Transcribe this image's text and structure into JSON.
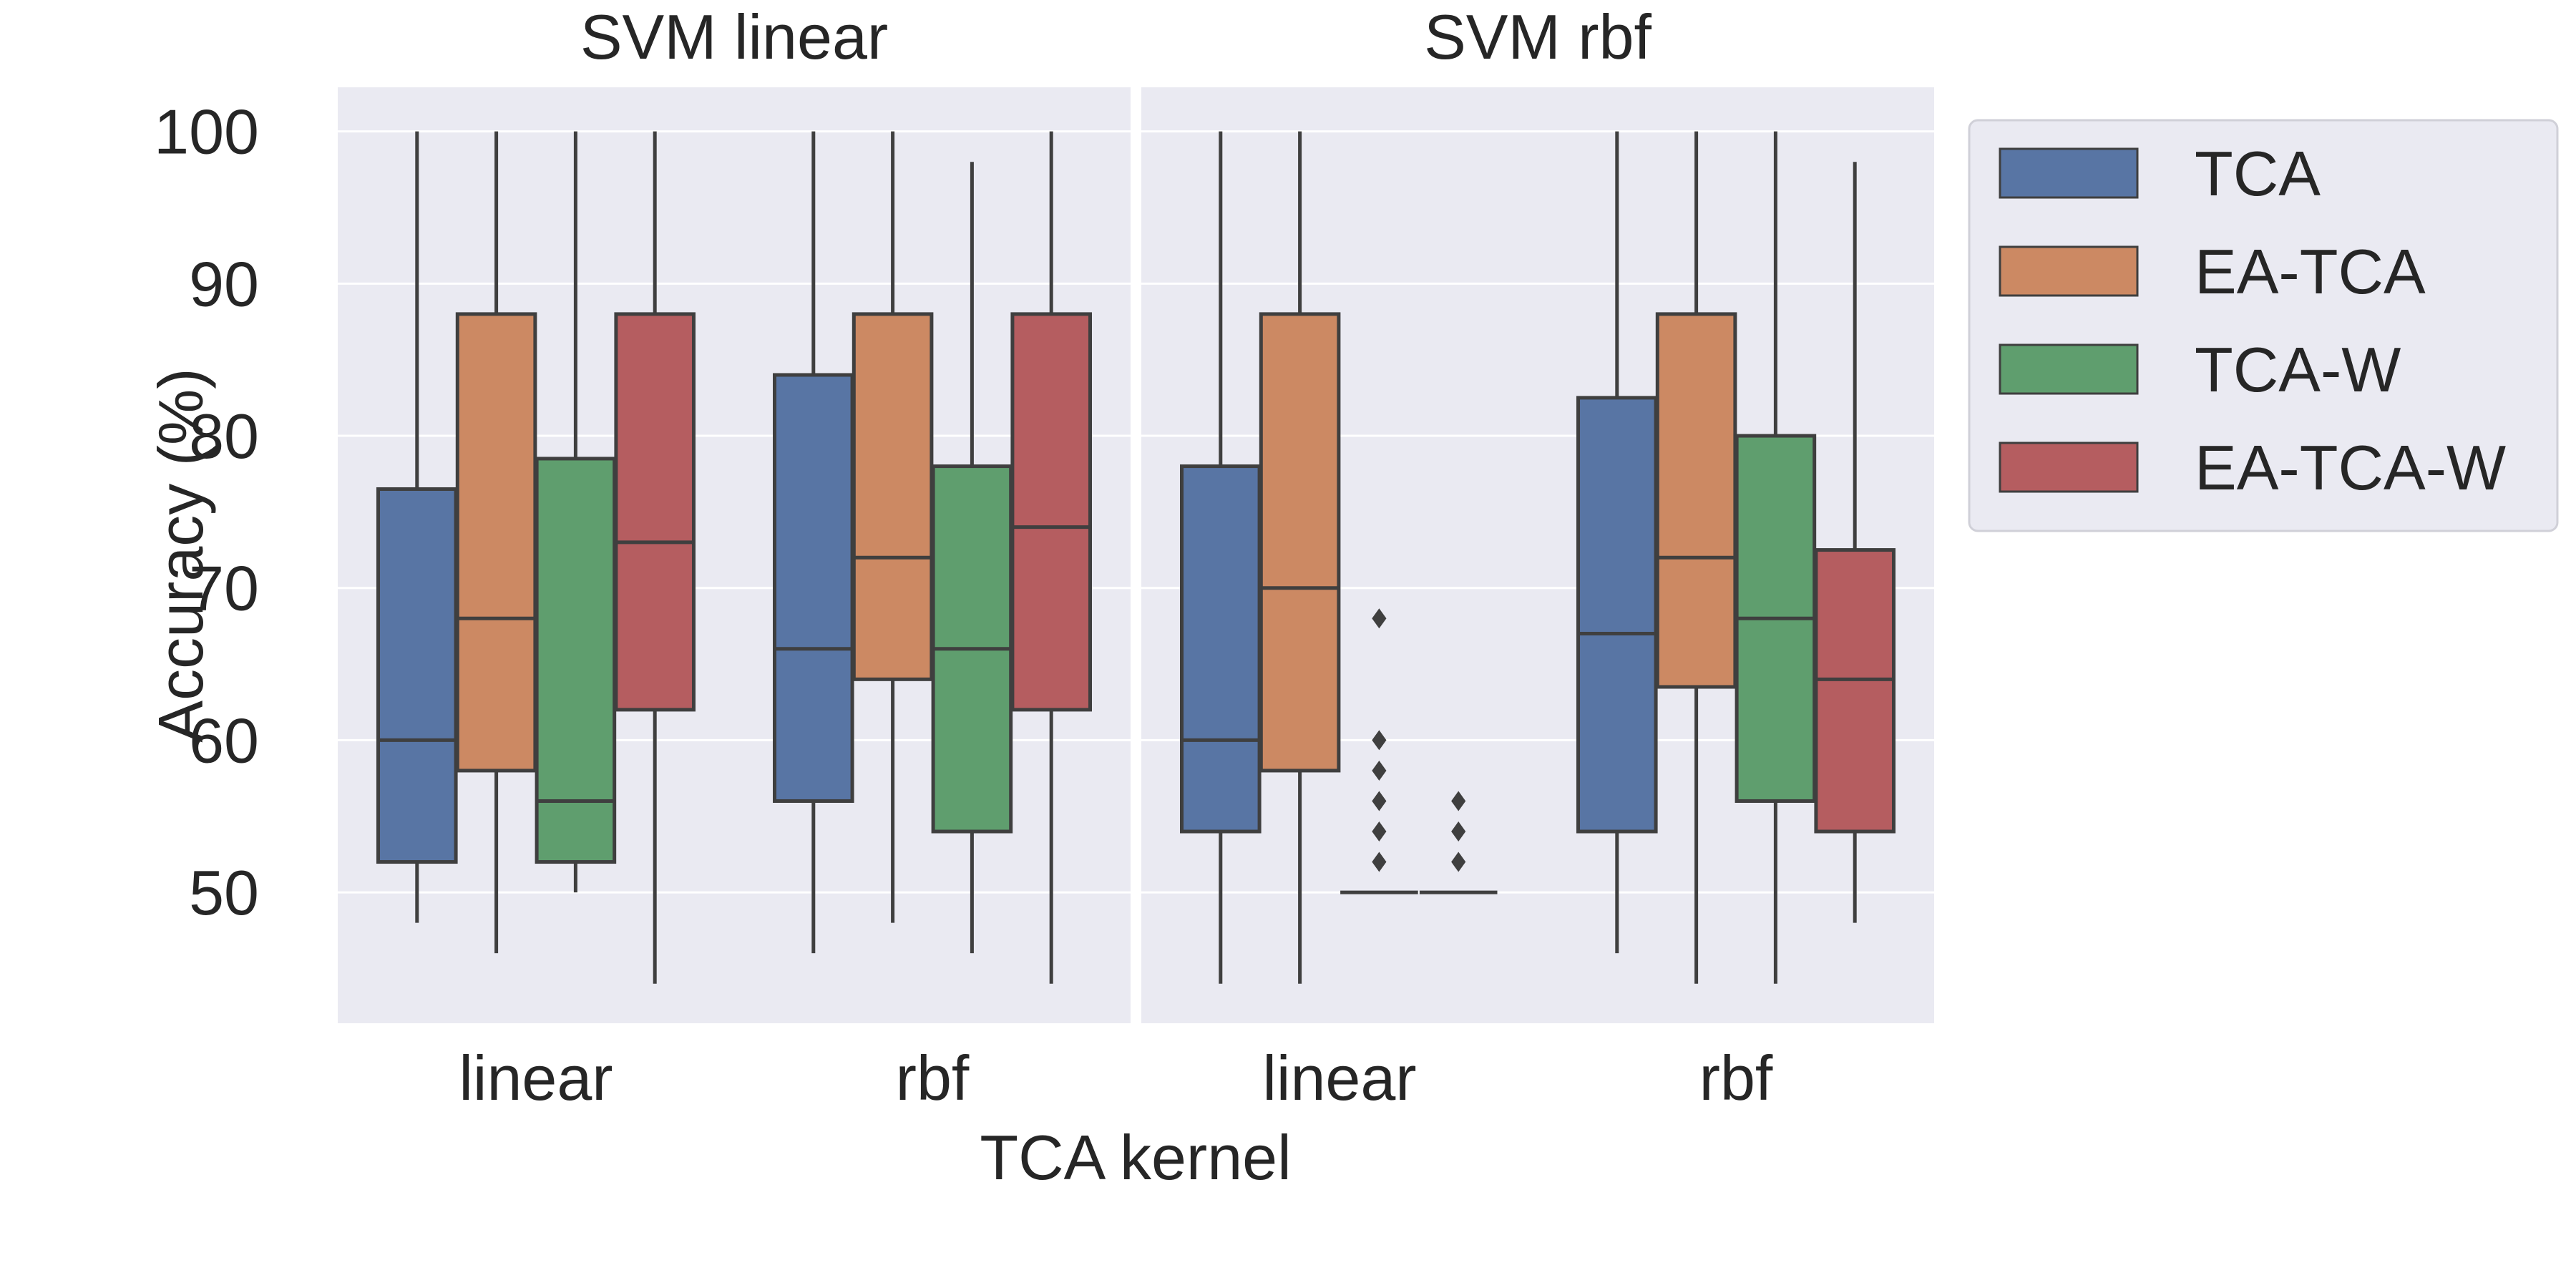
{
  "chart_data": {
    "type": "boxplot",
    "xlabel": "TCA kernel",
    "ylabel": "Accuracy (%)",
    "ylim": [
      41.4,
      102.9
    ],
    "yticks": [
      50,
      60,
      70,
      80,
      90,
      100
    ],
    "categories": [
      "linear",
      "rbf"
    ],
    "grid": true,
    "legend_position": "outside-right",
    "series": [
      {
        "name": "TCA",
        "color": "#5875a4"
      },
      {
        "name": "EA-TCA",
        "color": "#cc8963"
      },
      {
        "name": "TCA-W",
        "color": "#5f9e6e"
      },
      {
        "name": "EA-TCA-W",
        "color": "#b55d60"
      }
    ],
    "panels": [
      {
        "title": "SVM linear",
        "groups": [
          {
            "category": "linear",
            "boxes": [
              {
                "series": "TCA",
                "whislo": 48,
                "q1": 52,
                "med": 60,
                "q3": 76.5,
                "whishi": 100,
                "fliers": []
              },
              {
                "series": "EA-TCA",
                "whislo": 46,
                "q1": 58,
                "med": 68,
                "q3": 88,
                "whishi": 100,
                "fliers": []
              },
              {
                "series": "TCA-W",
                "whislo": 50,
                "q1": 52,
                "med": 56,
                "q3": 78.5,
                "whishi": 100,
                "fliers": []
              },
              {
                "series": "EA-TCA-W",
                "whislo": 44,
                "q1": 62,
                "med": 73,
                "q3": 88,
                "whishi": 100,
                "fliers": []
              }
            ]
          },
          {
            "category": "rbf",
            "boxes": [
              {
                "series": "TCA",
                "whislo": 46,
                "q1": 56,
                "med": 66,
                "q3": 84,
                "whishi": 100,
                "fliers": []
              },
              {
                "series": "EA-TCA",
                "whislo": 48,
                "q1": 64,
                "med": 72,
                "q3": 88,
                "whishi": 100,
                "fliers": []
              },
              {
                "series": "TCA-W",
                "whislo": 46,
                "q1": 54,
                "med": 66,
                "q3": 78,
                "whishi": 98,
                "fliers": []
              },
              {
                "series": "EA-TCA-W",
                "whislo": 44,
                "q1": 62,
                "med": 74,
                "q3": 88,
                "whishi": 100,
                "fliers": []
              }
            ]
          }
        ]
      },
      {
        "title": "SVM rbf",
        "groups": [
          {
            "category": "linear",
            "boxes": [
              {
                "series": "TCA",
                "whislo": 44,
                "q1": 54,
                "med": 60,
                "q3": 78,
                "whishi": 100,
                "fliers": []
              },
              {
                "series": "EA-TCA",
                "whislo": 44,
                "q1": 58,
                "med": 70,
                "q3": 88,
                "whishi": 100,
                "fliers": []
              },
              {
                "series": "TCA-W",
                "whislo": 50,
                "q1": 50,
                "med": 50,
                "q3": 50,
                "whishi": 50,
                "fliers": [
                  68,
                  60,
                  58,
                  56,
                  54,
                  52
                ]
              },
              {
                "series": "EA-TCA-W",
                "whislo": 50,
                "q1": 50,
                "med": 50,
                "q3": 50,
                "whishi": 50,
                "fliers": [
                  56,
                  54,
                  52
                ]
              }
            ]
          },
          {
            "category": "rbf",
            "boxes": [
              {
                "series": "TCA",
                "whislo": 46,
                "q1": 54,
                "med": 67,
                "q3": 82.5,
                "whishi": 100,
                "fliers": []
              },
              {
                "series": "EA-TCA",
                "whislo": 44,
                "q1": 63.5,
                "med": 72,
                "q3": 88,
                "whishi": 100,
                "fliers": []
              },
              {
                "series": "TCA-W",
                "whislo": 44,
                "q1": 56,
                "med": 68,
                "q3": 80,
                "whishi": 100,
                "fliers": []
              },
              {
                "series": "EA-TCA-W",
                "whislo": 48,
                "q1": 54,
                "med": 64,
                "q3": 72.5,
                "whishi": 98,
                "fliers": []
              }
            ]
          }
        ]
      }
    ]
  }
}
